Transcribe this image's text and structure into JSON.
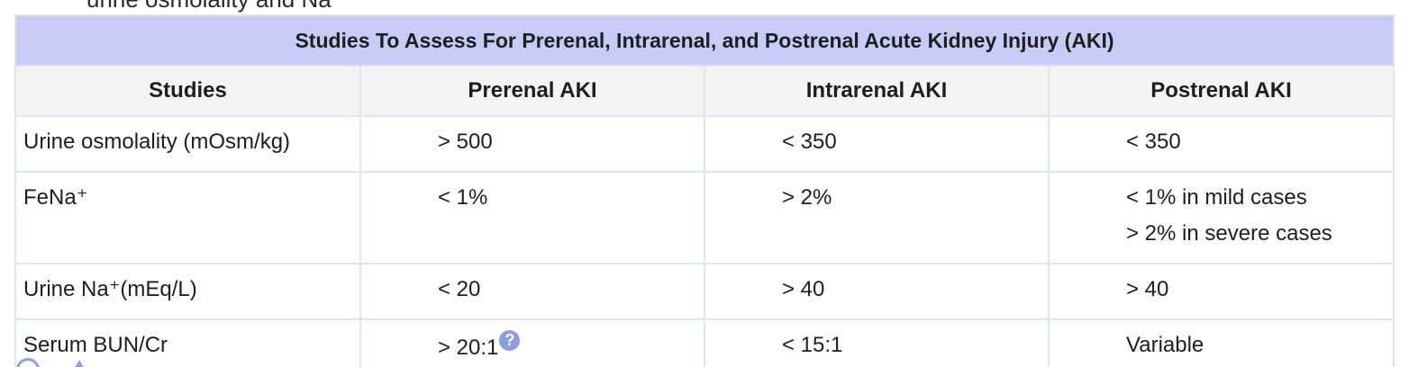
{
  "cut_text": "urine osmolality and Na⁺",
  "table": {
    "title": "Studies To Assess For Prerenal, Intrarenal, and Postrenal Acute Kidney Injury (AKI)",
    "headers": [
      "Studies",
      "Prerenal AKI",
      "Intrarenal AKI",
      "Postrenal AKI"
    ],
    "rows": [
      {
        "study": "Urine osmolality (mOsm/kg)",
        "prerenal": "> 500",
        "intrarenal": "< 350",
        "postrenal": [
          "< 350"
        ]
      },
      {
        "study": "FeNa⁺",
        "prerenal": "< 1%",
        "intrarenal": "> 2%",
        "postrenal": [
          "< 1% in mild cases",
          "> 2% in severe cases"
        ]
      },
      {
        "study": "Urine Na⁺(mEq/L)",
        "prerenal": "< 20",
        "intrarenal": "> 40",
        "postrenal": [
          "> 40"
        ]
      },
      {
        "study": "Serum BUN/Cr",
        "prerenal": "> 20:1",
        "intrarenal": "< 15:1",
        "postrenal": [
          "Variable"
        ]
      }
    ]
  },
  "icons": {
    "help": "question-circle-icon",
    "help_glyph": "?"
  }
}
